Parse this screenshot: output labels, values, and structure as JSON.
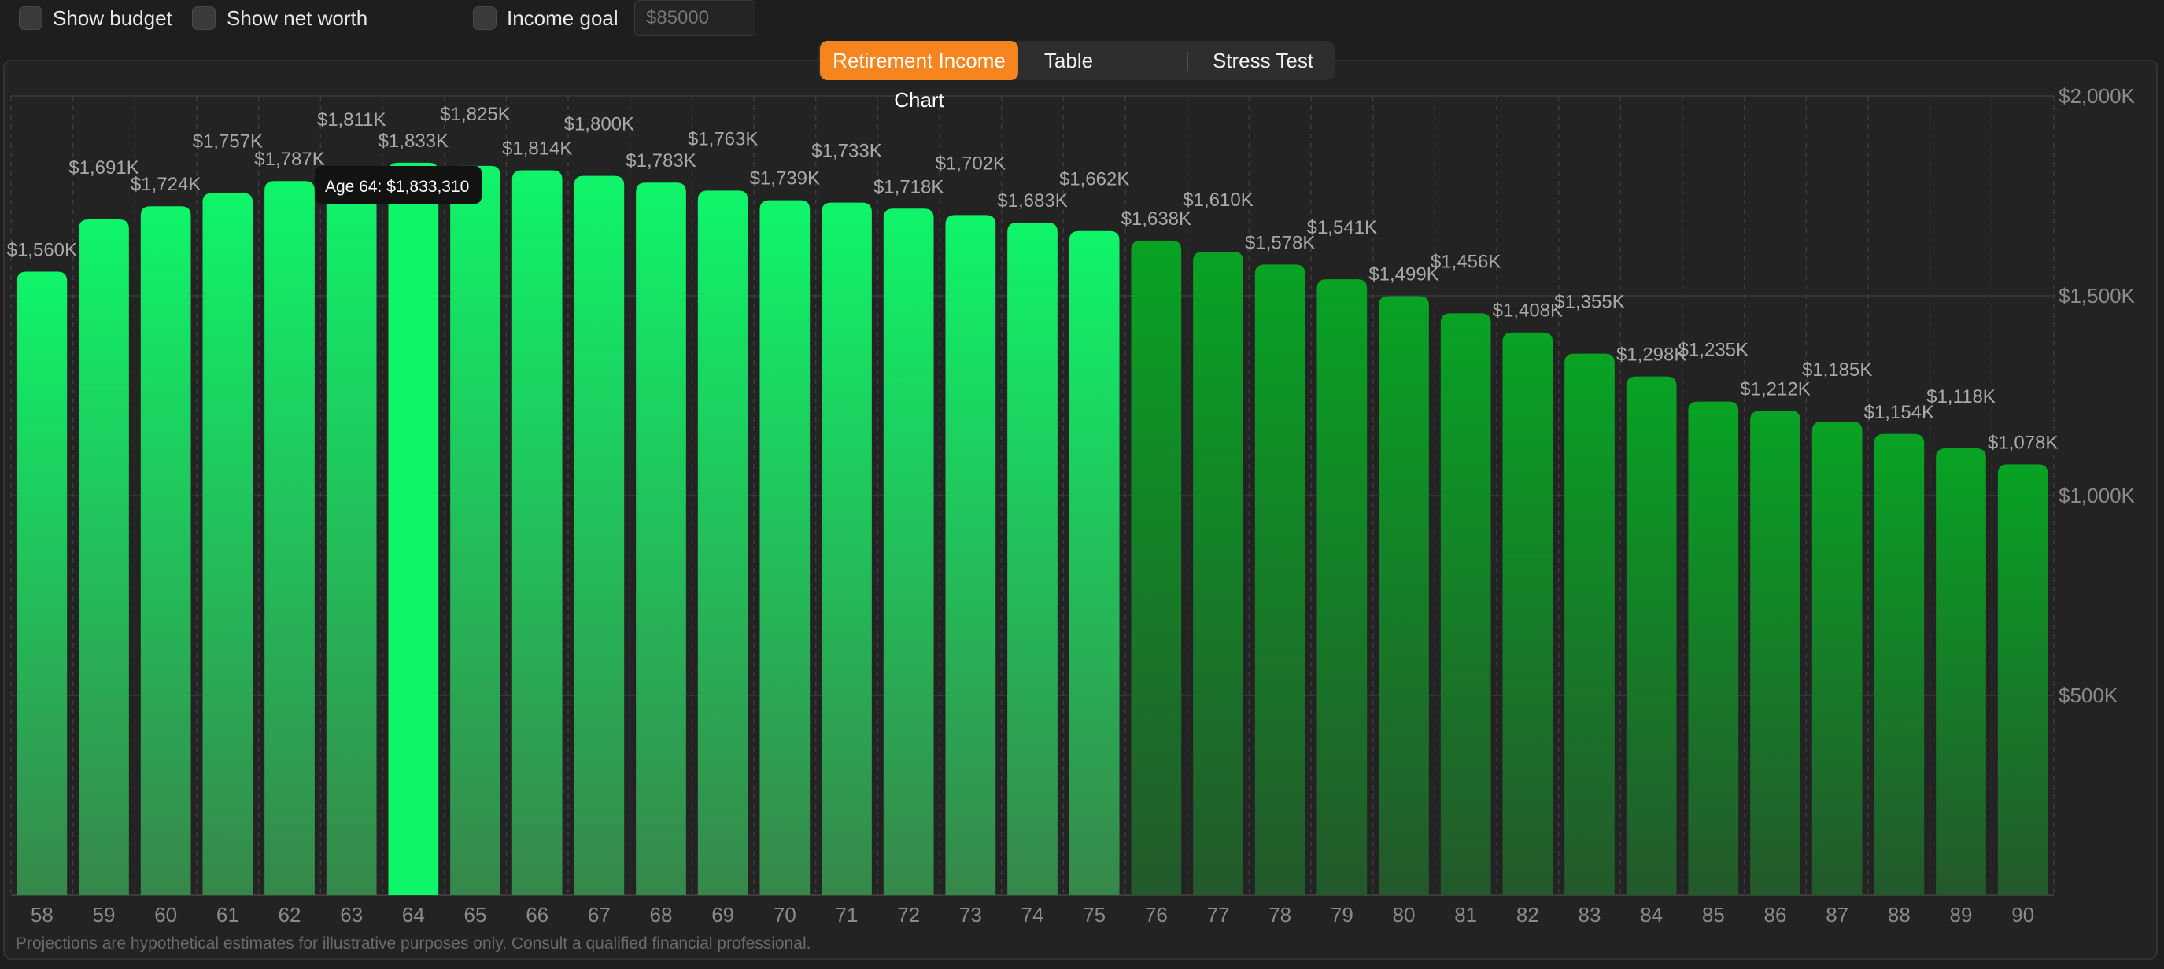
{
  "controls": {
    "show_budget": {
      "label": "Show budget",
      "checked": false
    },
    "show_net_worth": {
      "label": "Show net worth",
      "checked": false
    },
    "income_goal": {
      "label": "Income goal",
      "checked": false,
      "placeholder": "$85000"
    }
  },
  "tabs": [
    {
      "label": "Retirement Income Chart",
      "active": true
    },
    {
      "label": "Table",
      "active": false
    },
    {
      "label": "Stress Test",
      "active": false
    }
  ],
  "tooltip": {
    "text": "Age 64: $1,833,310"
  },
  "disclaimer": "Projections are hypothetical estimates for illustrative purposes only. Consult a qualified financial professional.",
  "colors": {
    "bright_bar_top": "#0ff56a",
    "bright_bar_bottom": "#36884a",
    "dark_bar_top": "#08a324",
    "dark_bar_bottom": "#23592b",
    "accent": "#f7851f"
  },
  "chart_data": {
    "type": "bar",
    "categories": [
      "58",
      "59",
      "60",
      "61",
      "62",
      "63",
      "64",
      "65",
      "66",
      "67",
      "68",
      "69",
      "70",
      "71",
      "72",
      "73",
      "74",
      "75",
      "76",
      "77",
      "78",
      "79",
      "80",
      "81",
      "82",
      "83",
      "84",
      "85",
      "86",
      "87",
      "88",
      "89",
      "90"
    ],
    "values": [
      1560,
      1691,
      1724,
      1757,
      1787,
      1811,
      1833,
      1825,
      1814,
      1800,
      1783,
      1763,
      1739,
      1733,
      1718,
      1702,
      1683,
      1662,
      1638,
      1610,
      1578,
      1541,
      1499,
      1456,
      1408,
      1355,
      1298,
      1235,
      1212,
      1185,
      1154,
      1118,
      1078
    ],
    "value_labels": [
      "$1,560K",
      "$1,691K",
      "$1,724K",
      "$1,757K",
      "$1,787K",
      "$1,811K",
      "$1,833K",
      "$1,825K",
      "$1,814K",
      "$1,800K",
      "$1,783K",
      "$1,763K",
      "$1,739K",
      "$1,733K",
      "$1,718K",
      "$1,702K",
      "$1,683K",
      "$1,662K",
      "$1,638K",
      "$1,610K",
      "$1,578K",
      "$1,541K",
      "$1,499K",
      "$1,456K",
      "$1,408K",
      "$1,355K",
      "$1,298K",
      "$1,235K",
      "$1,212K",
      "$1,185K",
      "$1,154K",
      "$1,118K",
      "$1,078K"
    ],
    "bright_from_index": 0,
    "bright_to_index": 17,
    "yticks": [
      500,
      1000,
      1500,
      2000
    ],
    "ytick_labels": [
      "$500K",
      "$1,000K",
      "$1,500K",
      "$2,000K"
    ],
    "ylim": [
      0,
      2000
    ],
    "units": "thousands",
    "highlight_index": 6,
    "grid": true
  }
}
